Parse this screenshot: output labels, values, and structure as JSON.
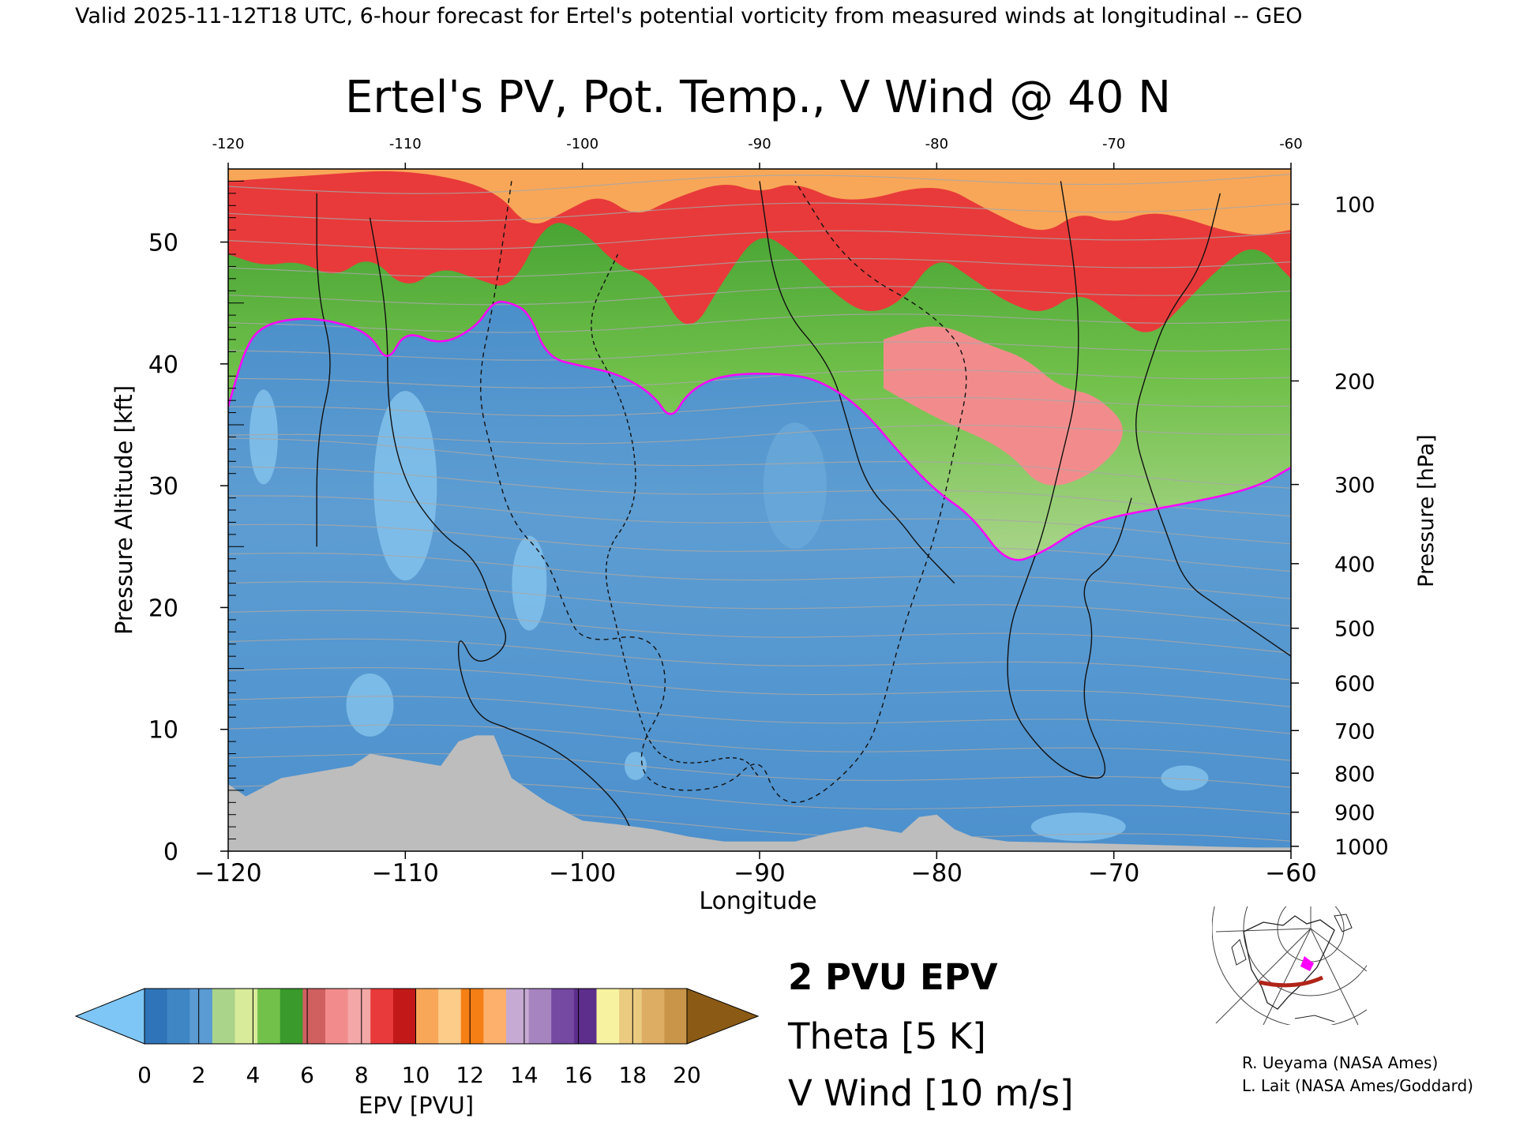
{
  "header": {
    "text": "Valid 2025-11-12T18 UTC, 6-hour forecast for Ertel's potential vorticity from measured winds at longitudinal -- GEO"
  },
  "chart_data": {
    "type": "heatmap",
    "title": "Ertel's PV, Pot. Temp., V Wind @ 40 N",
    "xlabel": "Longitude",
    "ylabel_left": "Pressure Altitude [kft]",
    "ylabel_right": "Pressure [hPa]",
    "xlim": [
      -120,
      -60
    ],
    "ylim_kft": [
      0,
      56
    ],
    "x_ticks": [
      -120,
      -110,
      -100,
      -90,
      -80,
      -70,
      -60
    ],
    "x_tick_labels": [
      "−120",
      "−110",
      "−100",
      "−90",
      "−80",
      "−70",
      "−60"
    ],
    "top_ticks": [
      -120,
      -110,
      -100,
      -90,
      -80,
      -70,
      -60
    ],
    "top_tick_labels": [
      "-120",
      "-110",
      "-100",
      "-90",
      "-80",
      "-70",
      "-60"
    ],
    "left_ticks_kft": [
      0,
      10,
      20,
      30,
      40,
      50
    ],
    "right_ticks": [
      {
        "hpa": "100",
        "kft": 53.1
      },
      {
        "hpa": "200",
        "kft": 38.6
      },
      {
        "hpa": "300",
        "kft": 30.1
      },
      {
        "hpa": "400",
        "kft": 23.6
      },
      {
        "hpa": "500",
        "kft": 18.3
      },
      {
        "hpa": "600",
        "kft": 13.8
      },
      {
        "hpa": "700",
        "kft": 9.9
      },
      {
        "hpa": "800",
        "kft": 6.4
      },
      {
        "hpa": "900",
        "kft": 3.2
      },
      {
        "hpa": "1000",
        "kft": 0.4
      }
    ],
    "tropopause_2pvu": [
      [
        -120,
        36.5
      ],
      [
        -119,
        41.5
      ],
      [
        -118,
        43.2
      ],
      [
        -116,
        43.8
      ],
      [
        -114,
        43.5
      ],
      [
        -112,
        42.5
      ],
      [
        -111,
        40
      ],
      [
        -110,
        42.8
      ],
      [
        -108,
        41.5
      ],
      [
        -106,
        43
      ],
      [
        -105,
        45.2
      ],
      [
        -104,
        45
      ],
      [
        -103,
        44.2
      ],
      [
        -102,
        40.5
      ],
      [
        -100,
        39.8
      ],
      [
        -98,
        39.2
      ],
      [
        -96,
        37.5
      ],
      [
        -95,
        35.3
      ],
      [
        -94,
        37.8
      ],
      [
        -92,
        39.2
      ],
      [
        -88,
        39.2
      ],
      [
        -86,
        38.2
      ],
      [
        -84,
        36
      ],
      [
        -82,
        32.5
      ],
      [
        -80,
        29.5
      ],
      [
        -78,
        27.5
      ],
      [
        -76,
        23.5
      ],
      [
        -74,
        24.5
      ],
      [
        -72,
        26.5
      ],
      [
        -70,
        27.5
      ],
      [
        -66,
        28.5
      ],
      [
        -62,
        29.8
      ],
      [
        -60,
        31.5
      ]
    ],
    "upper_boundary_6pvu": [
      [
        -120,
        49
      ],
      [
        -118,
        48
      ],
      [
        -116,
        48.5
      ],
      [
        -114,
        47
      ],
      [
        -112,
        49
      ],
      [
        -110,
        46
      ],
      [
        -108,
        48
      ],
      [
        -106,
        47
      ],
      [
        -104,
        46
      ],
      [
        -102,
        52
      ],
      [
        -100,
        51
      ],
      [
        -98,
        48
      ],
      [
        -96,
        47
      ],
      [
        -94,
        42
      ],
      [
        -92,
        47
      ],
      [
        -90,
        51
      ],
      [
        -88,
        49
      ],
      [
        -86,
        46
      ],
      [
        -84,
        44
      ],
      [
        -82,
        45
      ],
      [
        -80,
        49
      ],
      [
        -78,
        47
      ],
      [
        -76,
        45
      ],
      [
        -74,
        44
      ],
      [
        -72,
        46
      ],
      [
        -70,
        44
      ],
      [
        -68,
        42
      ],
      [
        -66,
        45
      ],
      [
        -64,
        48
      ],
      [
        -62,
        50
      ],
      [
        -60,
        47
      ]
    ],
    "upper_boundary_12pvu": [
      [
        -120,
        55
      ],
      [
        -115,
        55.5
      ],
      [
        -110,
        56
      ],
      [
        -105,
        54.5
      ],
      [
        -103,
        51
      ],
      [
        -101,
        52.5
      ],
      [
        -99,
        54
      ],
      [
        -97,
        52
      ],
      [
        -95,
        53.5
      ],
      [
        -92,
        55
      ],
      [
        -90,
        54
      ],
      [
        -88,
        55
      ],
      [
        -85,
        53
      ],
      [
        -80,
        55
      ],
      [
        -77,
        52.5
      ],
      [
        -74,
        50.5
      ],
      [
        -72,
        52.5
      ],
      [
        -70,
        51.5
      ],
      [
        -68,
        52.5
      ],
      [
        -66,
        52
      ],
      [
        -64,
        51
      ],
      [
        -62,
        50.5
      ],
      [
        -60,
        51
      ]
    ],
    "topography_kft": [
      [
        -120,
        5.5
      ],
      [
        -119,
        4.5
      ],
      [
        -117,
        6
      ],
      [
        -115,
        6.5
      ],
      [
        -113,
        7
      ],
      [
        -112,
        8
      ],
      [
        -108,
        7
      ],
      [
        -107,
        9
      ],
      [
        -106,
        9.5
      ],
      [
        -105,
        9.5
      ],
      [
        -104,
        6
      ],
      [
        -103,
        5
      ],
      [
        -102,
        4
      ],
      [
        -100,
        2.5
      ],
      [
        -98,
        2.2
      ],
      [
        -96,
        1.8
      ],
      [
        -94,
        1.2
      ],
      [
        -92,
        0.8
      ],
      [
        -88,
        0.8
      ],
      [
        -86,
        1.5
      ],
      [
        -84,
        2
      ],
      [
        -82,
        1.5
      ],
      [
        -81,
        2.8
      ],
      [
        -80,
        3
      ],
      [
        -79,
        1.8
      ],
      [
        -78,
        1.2
      ],
      [
        -76,
        0.8
      ],
      [
        -70,
        0.6
      ],
      [
        -65,
        0.4
      ],
      [
        -62,
        0.3
      ],
      [
        -60,
        0.3
      ]
    ],
    "high_pv_core_kft": [
      [
        -83,
        42
      ],
      [
        -80,
        43.5
      ],
      [
        -77,
        41.5
      ],
      [
        -75,
        40.5
      ],
      [
        -73,
        38
      ],
      [
        -71,
        37.5
      ],
      [
        -69,
        34.5
      ],
      [
        -71,
        31
      ],
      [
        -74,
        29.5
      ],
      [
        -76,
        33
      ],
      [
        -80,
        35.5
      ],
      [
        -83,
        38
      ]
    ],
    "v_wind_contours": [
      {
        "value": 0,
        "points": [
          [
            -115,
            54
          ],
          [
            -115,
            46
          ],
          [
            -114,
            40
          ],
          [
            -115,
            34
          ],
          [
            -115,
            25
          ]
        ]
      },
      {
        "value": 0,
        "points": [
          [
            -112,
            52
          ],
          [
            -111,
            44
          ],
          [
            -111,
            36
          ],
          [
            -110,
            30
          ],
          [
            -108,
            26
          ],
          [
            -106,
            24
          ],
          [
            -105,
            20
          ],
          [
            -104,
            17
          ],
          [
            -106,
            15
          ],
          [
            -107,
            18
          ],
          [
            -107,
            15
          ],
          [
            -106,
            11
          ],
          [
            -104,
            10
          ],
          [
            -101,
            8
          ],
          [
            -98,
            4
          ],
          [
            -97,
            1
          ]
        ]
      },
      {
        "value": 10,
        "points": [
          [
            -104,
            55
          ],
          [
            -105,
            45
          ],
          [
            -106,
            38
          ],
          [
            -105,
            32
          ],
          [
            -104,
            27
          ],
          [
            -102,
            24
          ],
          [
            -101,
            20
          ],
          [
            -100,
            17
          ],
          [
            -96,
            18
          ],
          [
            -95,
            13
          ],
          [
            -97,
            8
          ],
          [
            -96,
            5
          ],
          [
            -92,
            5
          ],
          [
            -90,
            8
          ],
          [
            -89,
            4
          ],
          [
            -87,
            4
          ],
          [
            -84,
            8
          ],
          [
            -83,
            12
          ],
          [
            -82,
            18
          ],
          [
            -80,
            26
          ],
          [
            -79,
            33
          ],
          [
            -78,
            40
          ],
          [
            -80,
            44
          ],
          [
            -85,
            48
          ],
          [
            -88,
            55
          ]
        ]
      },
      {
        "value": 10,
        "points": [
          [
            -98,
            49
          ],
          [
            -100,
            43
          ],
          [
            -98,
            38
          ],
          [
            -97,
            33
          ],
          [
            -97,
            28
          ],
          [
            -99,
            24
          ],
          [
            -98,
            18
          ],
          [
            -97,
            12
          ],
          [
            -96,
            8
          ],
          [
            -94,
            7
          ],
          [
            -91,
            8
          ],
          [
            -90,
            6
          ]
        ]
      },
      {
        "value": 0,
        "points": [
          [
            -90,
            55
          ],
          [
            -89,
            45
          ],
          [
            -86,
            40
          ],
          [
            -85,
            35
          ],
          [
            -84,
            30
          ],
          [
            -82,
            27
          ],
          [
            -81,
            25
          ],
          [
            -79,
            22
          ]
        ]
      },
      {
        "value": 0,
        "points": [
          [
            -73,
            55
          ],
          [
            -72,
            46
          ],
          [
            -72,
            38
          ],
          [
            -73,
            32
          ],
          [
            -74,
            26
          ],
          [
            -75,
            22
          ],
          [
            -76,
            18
          ],
          [
            -76,
            12
          ],
          [
            -74,
            8
          ],
          [
            -72,
            6
          ],
          [
            -70,
            6
          ],
          [
            -72,
            12
          ],
          [
            -71,
            18
          ],
          [
            -72,
            22
          ],
          [
            -70,
            24
          ],
          [
            -69,
            29
          ]
        ]
      },
      {
        "value": 10,
        "points": [
          [
            -64,
            54
          ],
          [
            -65,
            48
          ],
          [
            -67,
            44
          ],
          [
            -68,
            40
          ],
          [
            -69,
            35
          ],
          [
            -68,
            30
          ],
          [
            -67,
            26
          ],
          [
            -66,
            22
          ],
          [
            -64,
            20
          ],
          [
            -62,
            18
          ],
          [
            -60,
            16
          ]
        ]
      }
    ]
  },
  "legend": {
    "colorbar_label": "EPV [PVU]",
    "colorbar_ticks": [
      "0",
      "2",
      "4",
      "6",
      "8",
      "10",
      "12",
      "14",
      "16",
      "18",
      "20"
    ],
    "colorbar_colors": [
      "#2f74b8",
      "#3f86c5",
      "#5a9bd3",
      "#a9d48a",
      "#d8eb9a",
      "#72c14b",
      "#3a9a2c",
      "#d06060",
      "#f28c8c",
      "#f4a7a7",
      "#e83a3a",
      "#c21818",
      "#f8a758",
      "#fccc88",
      "#f57e15",
      "#fdb06b",
      "#c6aad4",
      "#a684c0",
      "#7548a1",
      "#5d2e8c",
      "#f7f2a0",
      "#eacb7f",
      "#dcad63",
      "#c99548"
    ],
    "under_color": "#7ec6f5",
    "over_color": "#8b5a14",
    "items": [
      {
        "label": "2 PVU EPV",
        "color": "#ff00ff"
      },
      {
        "label": "Theta [5 K]",
        "color": "#b5b5b5"
      },
      {
        "label": "V Wind [10 m/s]",
        "color": "#000000"
      }
    ]
  },
  "credits": [
    "R. Ueyama (NASA Ames)",
    "L. Lait (NASA Ames/Goddard)"
  ],
  "colors": {
    "tropo": "#ff00ff",
    "deep_blue": "#3a82c4",
    "light_blue": "#88c7ef",
    "terrain": "#bdbdbd",
    "theta": "#a8a8a8",
    "transect": "#b02418"
  }
}
